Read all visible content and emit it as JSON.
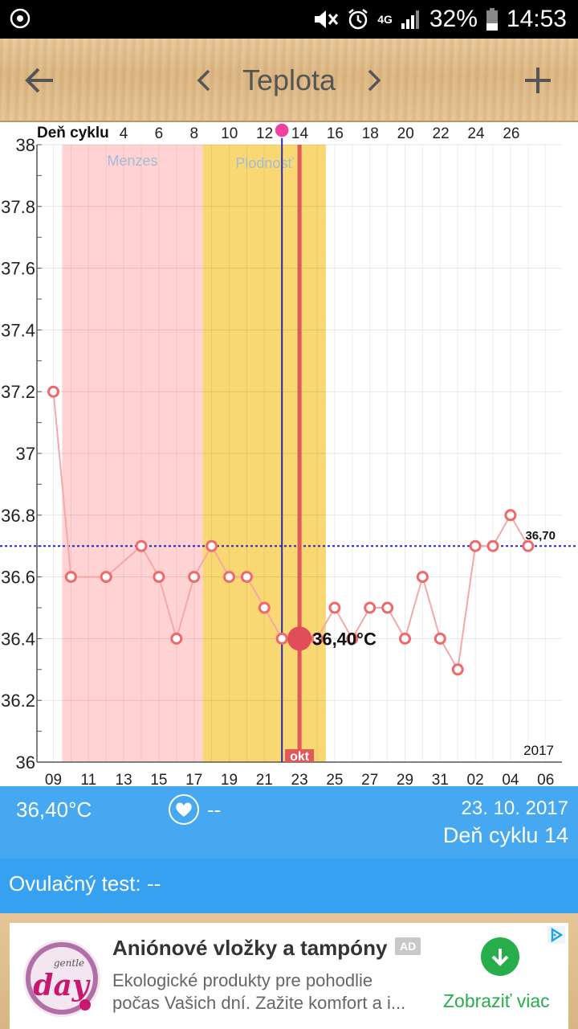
{
  "status_bar": {
    "battery": "32%",
    "time": "14:53",
    "network": "4G"
  },
  "app_bar": {
    "title": "Teplota"
  },
  "chart_data": {
    "type": "line",
    "top_axis_label": "Deň cyklu",
    "top_ticks": [
      "4",
      "6",
      "8",
      "10",
      "12",
      "14",
      "16",
      "18",
      "20",
      "22",
      "24",
      "26"
    ],
    "bottom_ticks": [
      "09",
      "11",
      "13",
      "15",
      "17",
      "19",
      "21",
      "23",
      "25",
      "27",
      "29",
      "31",
      "02",
      "04",
      "06"
    ],
    "y_ticks": [
      "38",
      "37.8",
      "37.6",
      "37.4",
      "37.2",
      "37",
      "36.8",
      "36.6",
      "36.4",
      "36.2",
      "36"
    ],
    "ylim": [
      36,
      38
    ],
    "x_dates": [
      "09",
      "10",
      "11",
      "12",
      "13",
      "14",
      "15",
      "16",
      "17",
      "18",
      "19",
      "20",
      "21",
      "22",
      "23",
      "24",
      "25",
      "26",
      "27",
      "28",
      "29",
      "30",
      "31",
      "01",
      "02",
      "03",
      "04",
      "05",
      "06"
    ],
    "values": [
      37.2,
      36.6,
      null,
      36.6,
      null,
      36.7,
      36.6,
      36.4,
      36.6,
      36.7,
      36.6,
      36.6,
      36.5,
      36.4,
      36.4,
      36.4,
      36.5,
      36.4,
      36.5,
      36.5,
      36.4,
      36.6,
      36.4,
      36.3,
      36.7,
      36.7,
      36.8,
      36.7,
      null
    ],
    "regions": [
      {
        "label": "Menzes",
        "from": "10",
        "to": "17",
        "color": "#ffd3d3",
        "label_color": "#a3bcd6"
      },
      {
        "label": "Plodnosť",
        "from": "18",
        "to": "24",
        "color": "#f9d873",
        "label_color": "#a3bcd6"
      }
    ],
    "baseline": {
      "value": 36.7,
      "label": "36,70",
      "color": "#2323c8"
    },
    "ovulation_line_date": "22",
    "selected": {
      "date": "23",
      "value": 36.4,
      "label": "36,40°C"
    },
    "month_label": "okt",
    "year_label": "2017",
    "series_color": "#f06868",
    "line_color": "#f4a8a8"
  },
  "info": {
    "temperature": "36,40°C",
    "heart_value": "--",
    "date": "23. 10. 2017",
    "cycle_day": "Deň cyklu 14",
    "ovulation_test": "Ovulačný test: --"
  },
  "ad": {
    "title": "Aniónové vložky a tampóny",
    "badge": "AD",
    "desc_line1": "Ekologické produkty pre pohodlie",
    "desc_line2": "počas Vašich dní. Zažite komfort a i...",
    "cta": "Zobraziť viac",
    "brand_small": "gentle",
    "brand_big": "day",
    "brand_color": "#c8186e"
  }
}
